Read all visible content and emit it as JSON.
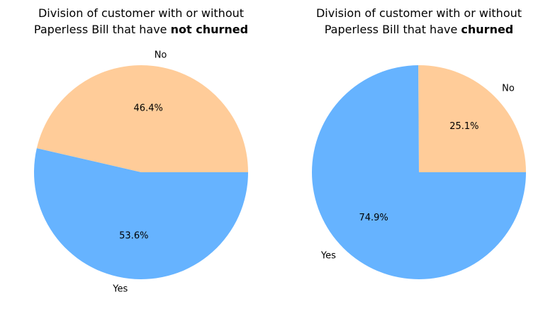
{
  "chart_data": [
    {
      "type": "pie",
      "title_line1": "Division of customer with or without",
      "title_line2_prefix": "Paperless Bill that have ",
      "title_line2_emphasis": "not churned",
      "slices": [
        {
          "label": "No",
          "value": 46.4,
          "pct_label": "46.4%",
          "color": "#ffcc99"
        },
        {
          "label": "Yes",
          "value": 53.6,
          "pct_label": "53.6%",
          "color": "#66b3ff"
        }
      ]
    },
    {
      "type": "pie",
      "title_line1": "Division of customer with or without",
      "title_line2_prefix": "Paperless Bill that have ",
      "title_line2_emphasis": "churned",
      "slices": [
        {
          "label": "No",
          "value": 25.1,
          "pct_label": "25.1%",
          "color": "#ffcc99"
        },
        {
          "label": "Yes",
          "value": 74.9,
          "pct_label": "74.9%",
          "color": "#66b3ff"
        }
      ]
    }
  ]
}
